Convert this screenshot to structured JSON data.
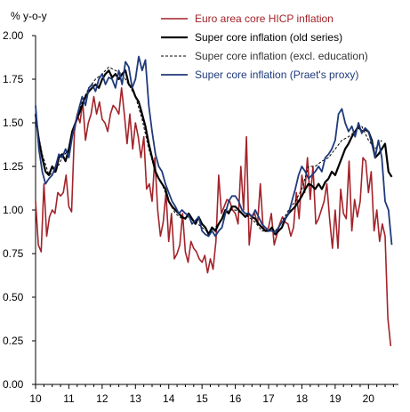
{
  "chart_data": {
    "type": "line",
    "ylabel": "% y-o-y",
    "ylim": [
      0,
      2
    ],
    "xlim": [
      2010,
      2020.9
    ],
    "yticks": [
      "0.00",
      "0.25",
      "0.50",
      "0.75",
      "1.00",
      "1.25",
      "1.50",
      "1.75",
      "2.00"
    ],
    "xticks": [
      {
        "label": "10",
        "value": 2010
      },
      {
        "label": "11",
        "value": 2011
      },
      {
        "label": "12",
        "value": 2012
      },
      {
        "label": "13",
        "value": 2013
      },
      {
        "label": "14",
        "value": 2014
      },
      {
        "label": "15",
        "value": 2015
      },
      {
        "label": "16",
        "value": 2016
      },
      {
        "label": "17",
        "value": 2017
      },
      {
        "label": "18",
        "value": 2018
      },
      {
        "label": "19",
        "value": 2019
      },
      {
        "label": "20",
        "value": 2020
      }
    ],
    "grid": false,
    "legend_position": "top-right",
    "series": [
      {
        "name": "Euro area core HICP inflation",
        "color": "#a3232a",
        "dash": "solid",
        "width": 1.6,
        "x": [
          2010.0,
          2010.083,
          2010.167,
          2010.25,
          2010.333,
          2010.417,
          2010.5,
          2010.583,
          2010.667,
          2010.75,
          2010.833,
          2010.917,
          2011.0,
          2011.083,
          2011.167,
          2011.25,
          2011.333,
          2011.417,
          2011.5,
          2011.583,
          2011.667,
          2011.75,
          2011.833,
          2011.917,
          2012.0,
          2012.083,
          2012.167,
          2012.25,
          2012.333,
          2012.417,
          2012.5,
          2012.583,
          2012.667,
          2012.75,
          2012.833,
          2012.917,
          2013.0,
          2013.083,
          2013.167,
          2013.25,
          2013.333,
          2013.417,
          2013.5,
          2013.583,
          2013.667,
          2013.75,
          2013.833,
          2013.917,
          2014.0,
          2014.083,
          2014.167,
          2014.25,
          2014.333,
          2014.417,
          2014.5,
          2014.583,
          2014.667,
          2014.75,
          2014.833,
          2014.917,
          2015.0,
          2015.083,
          2015.167,
          2015.25,
          2015.333,
          2015.417,
          2015.5,
          2015.583,
          2015.667,
          2015.75,
          2015.833,
          2015.917,
          2016.0,
          2016.083,
          2016.167,
          2016.25,
          2016.333,
          2016.417,
          2016.5,
          2016.583,
          2016.667,
          2016.75,
          2016.833,
          2016.917,
          2017.0,
          2017.083,
          2017.167,
          2017.25,
          2017.333,
          2017.417,
          2017.5,
          2017.583,
          2017.667,
          2017.75,
          2017.833,
          2017.917,
          2018.0,
          2018.083,
          2018.167,
          2018.25,
          2018.333,
          2018.417,
          2018.5,
          2018.583,
          2018.667,
          2018.75,
          2018.833,
          2018.917,
          2019.0,
          2019.083,
          2019.167,
          2019.25,
          2019.333,
          2019.417,
          2019.5,
          2019.583,
          2019.667,
          2019.75,
          2019.833,
          2019.917,
          2020.0,
          2020.083,
          2020.167,
          2020.25,
          2020.333,
          2020.417,
          2020.5,
          2020.583,
          2020.667
        ],
        "y": [
          1.05,
          0.8,
          0.76,
          1.15,
          0.85,
          0.96,
          1.0,
          0.98,
          1.1,
          1.08,
          1.1,
          1.2,
          1.02,
          0.99,
          1.45,
          1.55,
          1.5,
          1.62,
          1.4,
          1.5,
          1.55,
          1.65,
          1.55,
          1.62,
          1.52,
          1.5,
          1.45,
          1.55,
          1.6,
          1.58,
          1.55,
          1.7,
          1.55,
          1.38,
          1.55,
          1.35,
          1.5,
          1.42,
          1.3,
          1.42,
          1.12,
          1.15,
          1.05,
          1.3,
          1.0,
          0.85,
          0.93,
          1.1,
          0.82,
          0.98,
          0.72,
          0.75,
          0.8,
          0.98,
          0.76,
          0.7,
          0.82,
          0.78,
          0.76,
          0.72,
          0.7,
          0.74,
          0.64,
          0.72,
          0.66,
          0.82,
          1.2,
          0.98,
          1.02,
          1.06,
          1.05,
          1.0,
          0.98,
          0.92,
          1.25,
          1.0,
          1.42,
          0.8,
          0.96,
          0.98,
          0.92,
          1.15,
          0.9,
          0.88,
          0.9,
          0.98,
          0.8,
          0.86,
          0.92,
          0.96,
          0.93,
          0.92,
          0.85,
          0.9,
          1.1,
          0.95,
          1.2,
          1.1,
          1.3,
          1.06,
          1.25,
          0.92,
          0.95,
          1.0,
          1.05,
          1.15,
          0.95,
          0.78,
          1.0,
          0.78,
          1.12,
          0.98,
          0.95,
          1.28,
          0.88,
          1.06,
          0.96,
          1.05,
          1.3,
          1.28,
          1.1,
          1.22,
          0.88,
          1.0,
          0.82,
          0.92,
          0.85,
          0.38,
          0.22
        ]
      },
      {
        "name": "Super core inflation (old series)",
        "color": "#000000",
        "dash": "solid",
        "width": 2.2,
        "x": [
          2010.0,
          2010.1,
          2010.2,
          2010.3,
          2010.4,
          2010.5,
          2010.6,
          2010.7,
          2010.8,
          2010.9,
          2011.0,
          2011.1,
          2011.2,
          2011.3,
          2011.4,
          2011.5,
          2011.6,
          2011.7,
          2011.8,
          2011.9,
          2012.0,
          2012.1,
          2012.2,
          2012.3,
          2012.4,
          2012.5,
          2012.6,
          2012.7,
          2012.8,
          2012.9,
          2013.0,
          2013.1,
          2013.2,
          2013.3,
          2013.4,
          2013.5,
          2013.6,
          2013.7,
          2013.8,
          2013.9,
          2014.0,
          2014.1,
          2014.2,
          2014.3,
          2014.4,
          2014.5,
          2014.6,
          2014.7,
          2014.8,
          2014.9,
          2015.0,
          2015.1,
          2015.2,
          2015.3,
          2015.4,
          2015.5,
          2015.6,
          2015.7,
          2015.8,
          2015.9,
          2016.0,
          2016.1,
          2016.2,
          2016.3,
          2016.4,
          2016.5,
          2016.6,
          2016.7,
          2016.8,
          2016.9,
          2017.0,
          2017.1,
          2017.2,
          2017.3,
          2017.4,
          2017.5,
          2017.6,
          2017.7,
          2017.8,
          2017.9,
          2018.0,
          2018.1,
          2018.2,
          2018.3,
          2018.4,
          2018.5,
          2018.6,
          2018.7,
          2018.8,
          2018.9,
          2019.0,
          2019.1,
          2019.2,
          2019.3,
          2019.4,
          2019.5,
          2019.6,
          2019.7,
          2019.8,
          2019.9,
          2020.0,
          2020.1,
          2020.2,
          2020.3,
          2020.4,
          2020.5,
          2020.6,
          2020.7
        ],
        "y": [
          1.55,
          1.4,
          1.3,
          1.22,
          1.2,
          1.25,
          1.22,
          1.3,
          1.32,
          1.28,
          1.35,
          1.45,
          1.5,
          1.55,
          1.6,
          1.65,
          1.68,
          1.7,
          1.72,
          1.7,
          1.75,
          1.78,
          1.8,
          1.76,
          1.78,
          1.75,
          1.78,
          1.8,
          1.72,
          1.7,
          1.65,
          1.62,
          1.55,
          1.48,
          1.38,
          1.3,
          1.22,
          1.18,
          1.15,
          1.12,
          1.05,
          1.02,
          1.0,
          0.98,
          0.96,
          0.95,
          0.98,
          0.95,
          0.92,
          0.96,
          0.92,
          0.9,
          0.86,
          0.9,
          0.88,
          0.92,
          0.95,
          1.0,
          0.98,
          1.02,
          1.02,
          1.0,
          0.98,
          0.96,
          0.98,
          0.96,
          0.95,
          0.92,
          0.9,
          0.88,
          0.88,
          0.9,
          0.86,
          0.88,
          0.9,
          0.95,
          0.98,
          1.0,
          1.02,
          1.05,
          1.08,
          1.12,
          1.15,
          1.14,
          1.12,
          1.15,
          1.12,
          1.16,
          1.18,
          1.22,
          1.2,
          1.25,
          1.3,
          1.35,
          1.38,
          1.42,
          1.45,
          1.48,
          1.45,
          1.46,
          1.45,
          1.4,
          1.3,
          1.32,
          1.35,
          1.38,
          1.22,
          1.19
        ]
      },
      {
        "name": "Super core inflation (excl. education)",
        "color": "#000000",
        "dash": "dashed",
        "width": 1.0,
        "x": [
          2010.0,
          2010.2,
          2010.4,
          2010.6,
          2010.8,
          2011.0,
          2011.2,
          2011.4,
          2011.6,
          2011.8,
          2012.0,
          2012.2,
          2012.4,
          2012.6,
          2012.8,
          2013.0,
          2013.2,
          2013.4,
          2013.6,
          2013.8,
          2014.0,
          2014.2,
          2014.4,
          2014.6,
          2014.8,
          2015.0,
          2015.2,
          2015.4,
          2015.6,
          2015.8,
          2016.0,
          2016.2,
          2016.4,
          2016.6,
          2016.8,
          2017.0,
          2017.2,
          2017.4,
          2017.6,
          2017.8,
          2018.0,
          2018.2,
          2018.4,
          2018.6,
          2018.8,
          2019.0,
          2019.2,
          2019.4,
          2019.6,
          2019.8,
          2020.0,
          2020.2,
          2020.4
        ],
        "y": [
          1.52,
          1.32,
          1.2,
          1.22,
          1.3,
          1.35,
          1.5,
          1.62,
          1.7,
          1.75,
          1.78,
          1.82,
          1.8,
          1.78,
          1.72,
          1.65,
          1.52,
          1.35,
          1.22,
          1.15,
          1.05,
          0.98,
          0.95,
          0.96,
          0.93,
          0.9,
          0.87,
          0.9,
          0.95,
          1.0,
          1.0,
          0.98,
          0.96,
          0.93,
          0.88,
          0.88,
          0.88,
          0.93,
          1.0,
          1.05,
          1.12,
          1.25,
          1.25,
          1.28,
          1.3,
          1.35,
          1.4,
          1.42,
          1.45,
          1.48,
          1.4,
          1.35,
          1.4
        ]
      },
      {
        "name": "Super core inflation (Praet's proxy)",
        "color": "#1f3a7a",
        "dash": "solid",
        "width": 1.8,
        "x": [
          2010.0,
          2010.1,
          2010.2,
          2010.3,
          2010.4,
          2010.5,
          2010.6,
          2010.7,
          2010.8,
          2010.9,
          2011.0,
          2011.1,
          2011.2,
          2011.3,
          2011.4,
          2011.5,
          2011.6,
          2011.7,
          2011.8,
          2011.9,
          2012.0,
          2012.1,
          2012.2,
          2012.3,
          2012.4,
          2012.5,
          2012.6,
          2012.7,
          2012.8,
          2012.9,
          2013.0,
          2013.1,
          2013.2,
          2013.3,
          2013.4,
          2013.5,
          2013.6,
          2013.7,
          2013.8,
          2013.9,
          2014.0,
          2014.1,
          2014.2,
          2014.3,
          2014.4,
          2014.5,
          2014.6,
          2014.7,
          2014.8,
          2014.9,
          2015.0,
          2015.1,
          2015.2,
          2015.3,
          2015.4,
          2015.5,
          2015.6,
          2015.7,
          2015.8,
          2015.9,
          2016.0,
          2016.1,
          2016.2,
          2016.3,
          2016.4,
          2016.5,
          2016.6,
          2016.7,
          2016.8,
          2016.9,
          2017.0,
          2017.1,
          2017.2,
          2017.3,
          2017.4,
          2017.5,
          2017.6,
          2017.7,
          2017.8,
          2017.9,
          2018.0,
          2018.1,
          2018.2,
          2018.3,
          2018.4,
          2018.5,
          2018.6,
          2018.7,
          2018.8,
          2018.9,
          2019.0,
          2019.1,
          2019.2,
          2019.3,
          2019.4,
          2019.5,
          2019.6,
          2019.7,
          2019.8,
          2019.9,
          2020.0,
          2020.1,
          2020.2,
          2020.3,
          2020.4,
          2020.5,
          2020.6,
          2020.7
        ],
        "y": [
          1.6,
          1.35,
          1.22,
          1.15,
          1.18,
          1.2,
          1.25,
          1.32,
          1.3,
          1.35,
          1.3,
          1.42,
          1.5,
          1.58,
          1.65,
          1.6,
          1.7,
          1.72,
          1.68,
          1.75,
          1.78,
          1.72,
          1.76,
          1.75,
          1.7,
          1.8,
          1.72,
          1.85,
          1.82,
          1.7,
          1.75,
          1.88,
          1.8,
          1.86,
          1.6,
          1.45,
          1.32,
          1.25,
          1.22,
          1.15,
          1.1,
          1.05,
          1.02,
          0.98,
          1.0,
          0.98,
          0.97,
          0.92,
          0.94,
          0.96,
          0.88,
          0.86,
          0.85,
          0.88,
          0.85,
          0.88,
          0.9,
          0.98,
          1.05,
          1.08,
          1.08,
          1.05,
          1.0,
          0.98,
          0.98,
          0.96,
          1.0,
          0.96,
          0.92,
          0.9,
          0.88,
          0.88,
          0.87,
          0.9,
          0.93,
          0.95,
          0.98,
          1.05,
          1.12,
          1.2,
          1.25,
          1.22,
          1.18,
          1.2,
          1.22,
          1.25,
          1.22,
          1.3,
          1.32,
          1.35,
          1.4,
          1.55,
          1.58,
          1.5,
          1.45,
          1.48,
          1.42,
          1.5,
          1.44,
          1.47,
          1.45,
          1.38,
          1.3,
          1.4,
          1.3,
          1.05,
          1.0,
          0.8
        ]
      }
    ]
  }
}
